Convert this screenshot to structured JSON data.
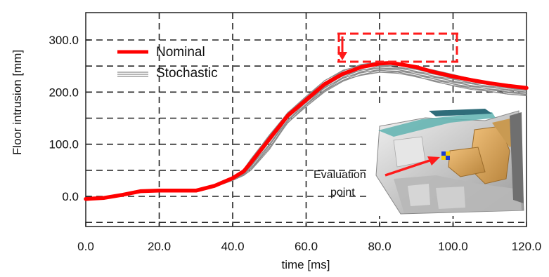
{
  "chart_data": {
    "type": "line",
    "xlabel": "time [ms]",
    "ylabel": "Floor intrusion [mm]",
    "xlim": [
      0,
      120
    ],
    "ylim": [
      -55,
      355
    ],
    "x_ticks": [
      "0.0",
      "20.0",
      "40.0",
      "60.0",
      "80.0",
      "100.0",
      "120.0"
    ],
    "y_ticks": [
      "0.0",
      "100.0",
      "200.0",
      "300.0"
    ],
    "y_tick_values": [
      0,
      100,
      200,
      300
    ],
    "x_tick_values": [
      0,
      20,
      40,
      60,
      80,
      100,
      120
    ],
    "grid": "dashed",
    "legend": {
      "position": "top-left",
      "entries": [
        {
          "name": "Nominal",
          "color": "#ff0000"
        },
        {
          "name": "Stochastic",
          "color": "#8c8c8c"
        }
      ]
    },
    "series": [
      {
        "name": "Nominal",
        "color": "#ff0000",
        "x": [
          0,
          5,
          10,
          15,
          20,
          25,
          30,
          35,
          40,
          43,
          45,
          50,
          55,
          60,
          65,
          70,
          75,
          80,
          83,
          85,
          90,
          95,
          100,
          105,
          110,
          115,
          120
        ],
        "y": [
          -5,
          -3,
          3,
          10,
          11,
          11,
          11,
          20,
          35,
          48,
          65,
          110,
          155,
          185,
          215,
          235,
          248,
          255,
          256,
          254,
          248,
          238,
          230,
          223,
          217,
          212,
          208
        ]
      },
      {
        "name": "Stochastic",
        "color": "#8c8c8c",
        "x": [
          0,
          5,
          10,
          15,
          20,
          25,
          30,
          35,
          40,
          43,
          45,
          50,
          55,
          60,
          65,
          70,
          75,
          80,
          85,
          90,
          95,
          100,
          105,
          110,
          115,
          120
        ],
        "y_low": [
          -5,
          -3,
          3,
          10,
          11,
          11,
          11,
          18,
          30,
          40,
          50,
          90,
          140,
          172,
          200,
          220,
          232,
          238,
          236,
          228,
          220,
          212,
          205,
          200,
          196,
          193
        ],
        "y_high": [
          -5,
          -3,
          3,
          10,
          11,
          11,
          11,
          21,
          38,
          52,
          72,
          118,
          162,
          192,
          222,
          242,
          254,
          258,
          256,
          250,
          242,
          234,
          226,
          220,
          214,
          210
        ]
      }
    ],
    "annotations": [
      {
        "text": "Evaluation",
        "color": "#111111"
      },
      {
        "text": "point",
        "color": "#111111"
      }
    ],
    "reduction_marker_color": "#ff0000"
  }
}
